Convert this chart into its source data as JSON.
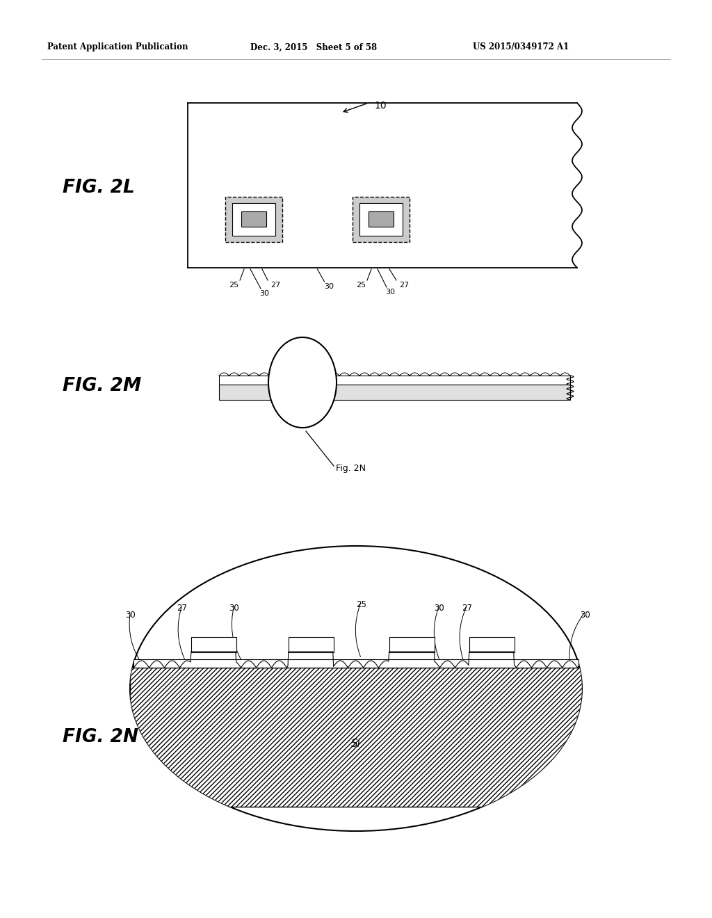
{
  "bg_color": "#ffffff",
  "text_color": "#000000",
  "header_left": "Patent Application Publication",
  "header_mid": "Dec. 3, 2015   Sheet 5 of 58",
  "header_right": "US 2015/0349172 A1",
  "fig_labels": [
    "FIG. 2L",
    "FIG. 2M",
    "FIG. 2N"
  ],
  "label_10": "10",
  "label_si": "Si",
  "label_fig2n": "Fig. 2N"
}
